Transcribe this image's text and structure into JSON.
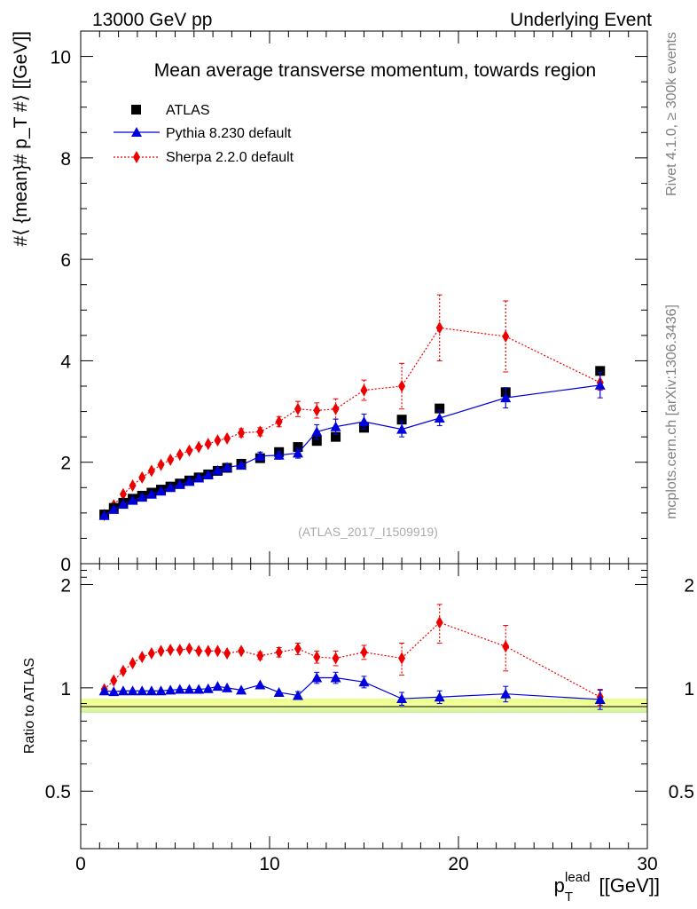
{
  "header": {
    "left": "13000 GeV pp",
    "right": "Underlying Event"
  },
  "side": {
    "top": "Rivet 4.1.0, ≥ 300k events",
    "bottom": "mcplots.cern.ch [arXiv:1306.3436]"
  },
  "chart_data": [
    {
      "type": "scatter",
      "title": "Mean average transverse momentum, towards region",
      "watermark": "(ATLAS_2017_I1509919)",
      "ylabel": "#⟨ {mean}# p_T #⟩ [[GeV]]",
      "xlabel": "",
      "xlim": [
        0,
        30
      ],
      "ylim": [
        0,
        10.5
      ],
      "yticks": [
        "0",
        "2",
        "4",
        "6",
        "8",
        "10"
      ],
      "legend": "top-left",
      "series": [
        {
          "name": "ATLAS",
          "color": "#000000",
          "marker": "square",
          "x": [
            1.25,
            1.75,
            2.25,
            2.75,
            3.25,
            3.75,
            4.25,
            4.75,
            5.25,
            5.75,
            6.25,
            6.75,
            7.25,
            7.75,
            8.5,
            9.5,
            10.5,
            11.5,
            12.5,
            13.5,
            15,
            17,
            19,
            22.5,
            27.5
          ],
          "y": [
            0.97,
            1.1,
            1.2,
            1.28,
            1.34,
            1.4,
            1.46,
            1.52,
            1.58,
            1.64,
            1.7,
            1.76,
            1.83,
            1.89,
            1.97,
            2.08,
            2.2,
            2.3,
            2.42,
            2.5,
            2.68,
            2.84,
            3.06,
            3.38,
            3.8
          ]
        },
        {
          "name": "Pythia 8.230 default",
          "color": "#0000dd",
          "marker": "triangle",
          "x": [
            1.25,
            1.75,
            2.25,
            2.75,
            3.25,
            3.75,
            4.25,
            4.75,
            5.25,
            5.75,
            6.25,
            6.75,
            7.25,
            7.75,
            8.5,
            9.5,
            10.5,
            11.5,
            12.5,
            13.5,
            15,
            17,
            19,
            22.5,
            27.5
          ],
          "y": [
            0.95,
            1.07,
            1.17,
            1.25,
            1.31,
            1.37,
            1.43,
            1.5,
            1.56,
            1.62,
            1.69,
            1.75,
            1.84,
            1.9,
            1.94,
            2.12,
            2.14,
            2.18,
            2.6,
            2.7,
            2.8,
            2.65,
            2.87,
            3.27,
            3.52
          ],
          "err": [
            0.04,
            0.04,
            0.04,
            0.04,
            0.04,
            0.04,
            0.04,
            0.04,
            0.05,
            0.05,
            0.05,
            0.05,
            0.05,
            0.05,
            0.06,
            0.08,
            0.08,
            0.1,
            0.14,
            0.15,
            0.15,
            0.15,
            0.15,
            0.2,
            0.25
          ]
        },
        {
          "name": "Sherpa 2.2.0 default",
          "color": "#ee0000",
          "marker": "diamond",
          "x": [
            1.25,
            1.75,
            2.25,
            2.75,
            3.25,
            3.75,
            4.25,
            4.75,
            5.25,
            5.75,
            6.25,
            6.75,
            7.25,
            7.75,
            8.5,
            9.5,
            10.5,
            11.5,
            12.5,
            13.5,
            15,
            17,
            19,
            22.5,
            27.5
          ],
          "y": [
            0.96,
            1.15,
            1.37,
            1.54,
            1.7,
            1.83,
            1.95,
            2.05,
            2.15,
            2.23,
            2.3,
            2.36,
            2.43,
            2.47,
            2.58,
            2.6,
            2.8,
            3.05,
            3.02,
            3.05,
            3.42,
            3.5,
            4.65,
            4.48,
            3.57
          ],
          "err": [
            0.04,
            0.04,
            0.04,
            0.04,
            0.05,
            0.05,
            0.05,
            0.05,
            0.05,
            0.05,
            0.05,
            0.06,
            0.06,
            0.06,
            0.08,
            0.08,
            0.1,
            0.15,
            0.15,
            0.2,
            0.2,
            0.45,
            0.65,
            0.7,
            0.15
          ]
        }
      ]
    },
    {
      "type": "scatter",
      "title": "",
      "xlabel": "p_T^lead [[GeV]]",
      "ylabel": "Ratio to ATLAS",
      "xlim": [
        0,
        30
      ],
      "ylim": [
        0.34,
        2.3
      ],
      "yticks_left": [
        "0.5",
        "1",
        "2"
      ],
      "yticks_right": [
        "0.5",
        "1",
        "2"
      ],
      "xticks": [
        "0",
        "10",
        "20",
        "30"
      ],
      "reference": 1,
      "series": [
        {
          "name": "Pythia 8.230 default",
          "color": "#0000dd",
          "marker": "triangle",
          "x": [
            1.25,
            1.75,
            2.25,
            2.75,
            3.25,
            3.75,
            4.25,
            4.75,
            5.25,
            5.75,
            6.25,
            6.75,
            7.25,
            7.75,
            8.5,
            9.5,
            10.5,
            11.5,
            12.5,
            13.5,
            15,
            17,
            19,
            22.5,
            27.5
          ],
          "y": [
            0.98,
            0.975,
            0.98,
            0.98,
            0.98,
            0.98,
            0.98,
            0.985,
            0.99,
            0.99,
            0.99,
            0.995,
            1.01,
            1.0,
            0.985,
            1.02,
            0.97,
            0.95,
            1.07,
            1.07,
            1.04,
            0.93,
            0.94,
            0.96,
            0.925
          ],
          "err": [
            0.01,
            0.01,
            0.01,
            0.01,
            0.01,
            0.01,
            0.01,
            0.01,
            0.01,
            0.01,
            0.01,
            0.01,
            0.01,
            0.01,
            0.015,
            0.02,
            0.02,
            0.025,
            0.04,
            0.04,
            0.04,
            0.04,
            0.04,
            0.05,
            0.06
          ]
        },
        {
          "name": "Sherpa 2.2.0 default",
          "color": "#ee0000",
          "marker": "diamond",
          "x": [
            1.25,
            1.75,
            2.25,
            2.75,
            3.25,
            3.75,
            4.25,
            4.75,
            5.25,
            5.75,
            6.25,
            6.75,
            7.25,
            7.75,
            8.5,
            9.5,
            10.5,
            11.5,
            12.5,
            13.5,
            15,
            17,
            19,
            22.5,
            27.5
          ],
          "y": [
            0.99,
            1.05,
            1.12,
            1.18,
            1.23,
            1.26,
            1.28,
            1.29,
            1.29,
            1.3,
            1.28,
            1.28,
            1.28,
            1.26,
            1.28,
            1.24,
            1.27,
            1.3,
            1.23,
            1.22,
            1.27,
            1.22,
            1.55,
            1.32,
            0.94
          ],
          "err": [
            0.01,
            0.01,
            0.01,
            0.015,
            0.015,
            0.015,
            0.015,
            0.015,
            0.015,
            0.015,
            0.02,
            0.02,
            0.02,
            0.02,
            0.03,
            0.03,
            0.04,
            0.05,
            0.05,
            0.06,
            0.06,
            0.13,
            0.2,
            0.2,
            0.05
          ]
        }
      ]
    }
  ]
}
